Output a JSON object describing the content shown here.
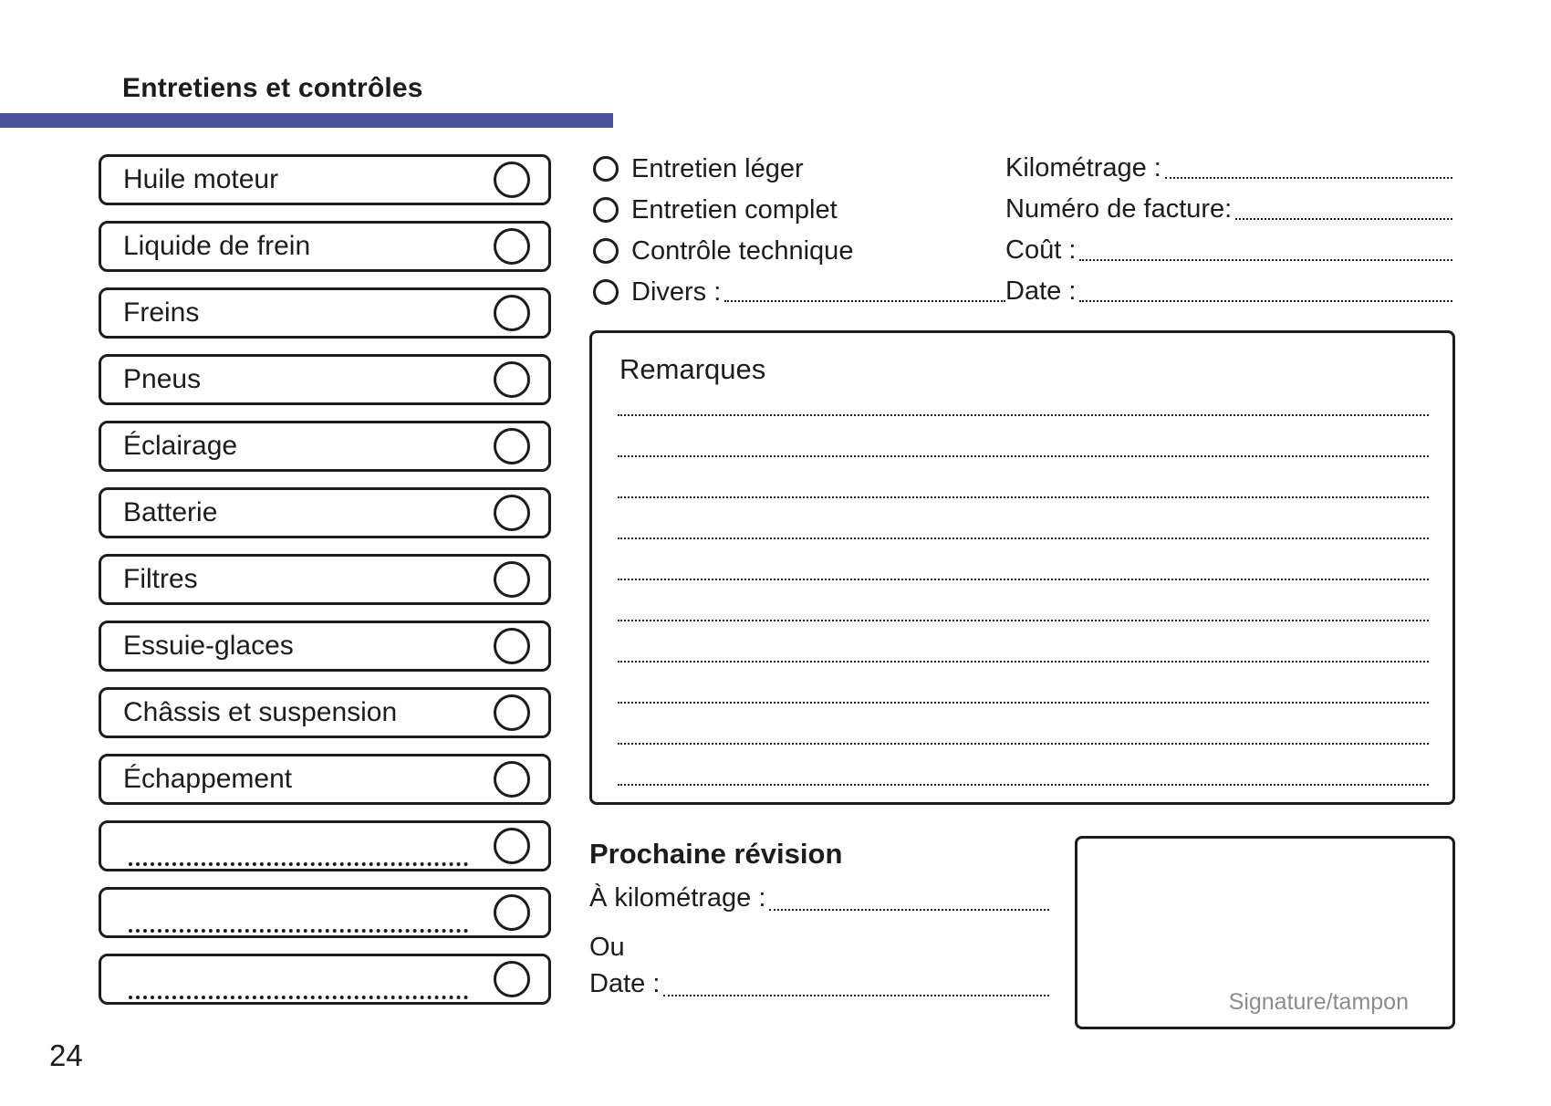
{
  "page": {
    "title": "Entretiens et contrôles",
    "page_number": "24",
    "accent_color": "#4a509b"
  },
  "checklist": {
    "items": [
      {
        "label": "Huile moteur",
        "dotted": false
      },
      {
        "label": "Liquide de frein",
        "dotted": false
      },
      {
        "label": "Freins",
        "dotted": false
      },
      {
        "label": "Pneus",
        "dotted": false
      },
      {
        "label": "Éclairage",
        "dotted": false
      },
      {
        "label": "Batterie",
        "dotted": false
      },
      {
        "label": "Filtres",
        "dotted": false
      },
      {
        "label": "Essuie-glaces",
        "dotted": false
      },
      {
        "label": "Châssis et suspension",
        "dotted": false
      },
      {
        "label": "Échappement",
        "dotted": false
      },
      {
        "label": "",
        "dotted": true
      },
      {
        "label": "",
        "dotted": true
      },
      {
        "label": "",
        "dotted": true
      }
    ]
  },
  "service_options": {
    "items": [
      {
        "label": "Entretien léger",
        "has_leader": false
      },
      {
        "label": "Entretien complet",
        "has_leader": false
      },
      {
        "label": "Contrôle technique",
        "has_leader": false
      },
      {
        "label": "Divers :",
        "has_leader": true
      }
    ]
  },
  "invoice_fields": {
    "items": [
      {
        "label": "Kilométrage :"
      },
      {
        "label": "Numéro de facture:"
      },
      {
        "label": "Coût :"
      },
      {
        "label": "Date :"
      }
    ]
  },
  "remarks": {
    "title": "Remarques",
    "line_count": 10
  },
  "next_service": {
    "title": "Prochaine révision",
    "km_label": "À kilométrage :",
    "or_label": "Ou",
    "date_label": "Date :"
  },
  "signature": {
    "label": "Signature/tampon"
  }
}
